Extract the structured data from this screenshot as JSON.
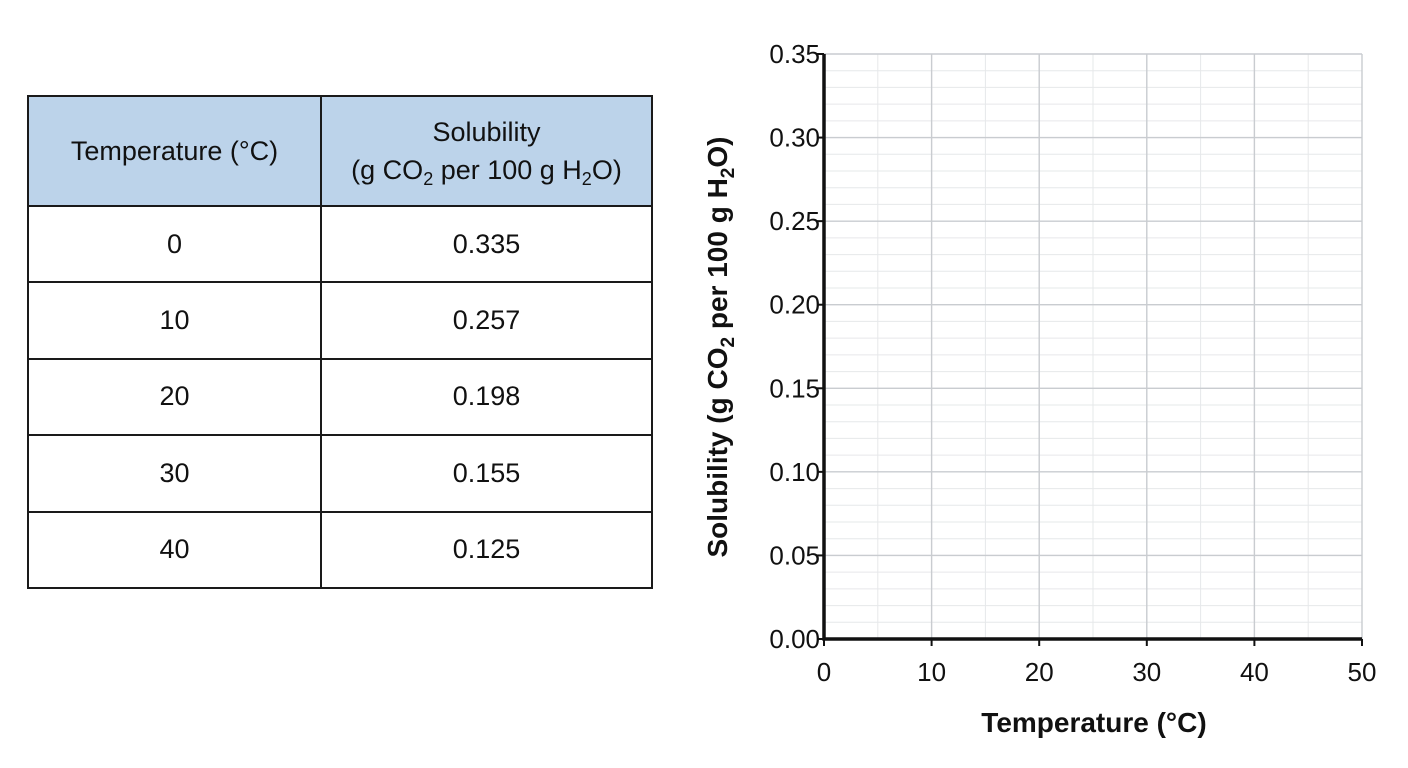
{
  "chart_data": [
    {
      "type": "table",
      "columns": [
        {
          "label": "Temperature (°C)"
        },
        {
          "line1": "Solubility",
          "line2_parts": [
            "(g CO",
            "2",
            " per 100 g H",
            "2",
            "O)"
          ]
        }
      ],
      "rows": [
        {
          "temperature": "0",
          "solubility": "0.335"
        },
        {
          "temperature": "10",
          "solubility": "0.257"
        },
        {
          "temperature": "20",
          "solubility": "0.198"
        },
        {
          "temperature": "30",
          "solubility": "0.155"
        },
        {
          "temperature": "40",
          "solubility": "0.125"
        }
      ],
      "header_color": "#bcd3ea"
    },
    {
      "type": "scatter",
      "series": [],
      "xlabel": "Temperature (°C)",
      "ylabel_parts": [
        "Solubility (g CO",
        "2",
        " per 100 g H",
        "2",
        "O)"
      ],
      "xlim": [
        0,
        50
      ],
      "ylim": [
        0,
        0.35
      ],
      "xticks": [
        "0",
        "10",
        "20",
        "30",
        "40",
        "50"
      ],
      "yticks": [
        "0.00",
        "0.05",
        "0.10",
        "0.15",
        "0.20",
        "0.25",
        "0.30",
        "0.35"
      ],
      "x_major_step": 10,
      "x_minor_step": 5,
      "y_major_step": 0.05,
      "y_minor_step": 0.01,
      "grid": true,
      "grid_major_color": "#c9ccd0",
      "grid_minor_color": "#e6e8ea"
    }
  ]
}
